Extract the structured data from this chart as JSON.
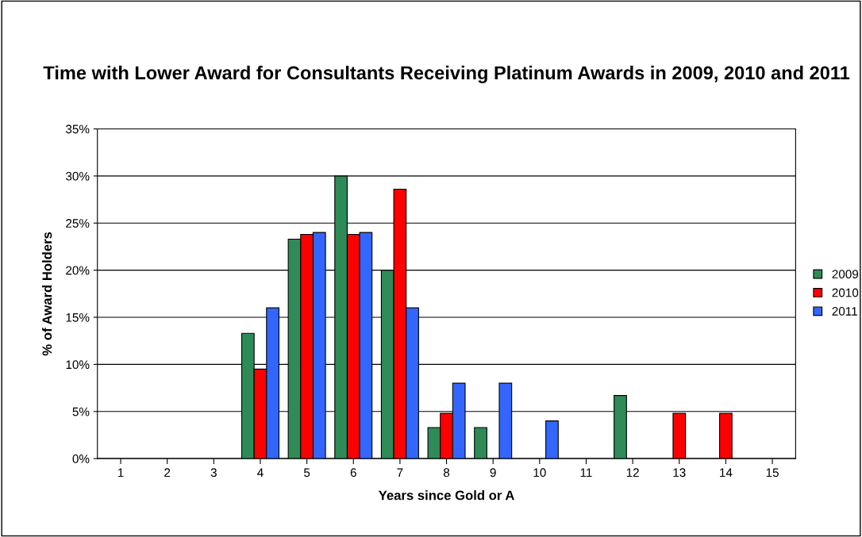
{
  "chart_data": {
    "type": "bar",
    "title": "Time with Lower Award for Consultants Receiving Platinum Awards in 2009, 2010 and 2011",
    "xlabel": "Years since Gold or A",
    "ylabel": "% of Award Holders",
    "categories": [
      "1",
      "2",
      "3",
      "4",
      "5",
      "6",
      "7",
      "8",
      "9",
      "10",
      "11",
      "12",
      "13",
      "14",
      "15"
    ],
    "series": [
      {
        "name": "2009",
        "color": "#2e8b57",
        "values": [
          null,
          null,
          null,
          13.3,
          23.3,
          30,
          20,
          3.3,
          3.3,
          null,
          null,
          6.7,
          null,
          null,
          null
        ]
      },
      {
        "name": "2010",
        "color": "#ff0000",
        "values": [
          null,
          null,
          null,
          9.5,
          23.8,
          23.8,
          28.6,
          4.8,
          null,
          null,
          null,
          null,
          4.8,
          4.8,
          null
        ]
      },
      {
        "name": "2011",
        "color": "#3366ff",
        "values": [
          null,
          null,
          null,
          16,
          24,
          24,
          16,
          8,
          8,
          4,
          null,
          null,
          null,
          null,
          null
        ]
      }
    ],
    "ylim": [
      0,
      35
    ],
    "yticks": [
      {
        "value": 0,
        "label": "0%"
      },
      {
        "value": 5,
        "label": "5%"
      },
      {
        "value": 10,
        "label": "10%"
      },
      {
        "value": 15,
        "label": "15%"
      },
      {
        "value": 20,
        "label": "20%"
      },
      {
        "value": 25,
        "label": "25%"
      },
      {
        "value": 30,
        "label": "30%"
      },
      {
        "value": 35,
        "label": "35%"
      }
    ],
    "grid": "y",
    "legend": "right"
  }
}
